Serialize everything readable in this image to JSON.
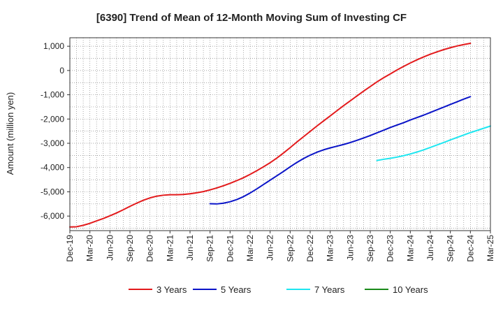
{
  "chart_data": {
    "type": "line",
    "title": "[6390]  Trend of Mean of 12-Month Moving Sum of Investing CF",
    "xlabel": "",
    "ylabel": "Amount (million yen)",
    "ylim": [
      -6600,
      1350
    ],
    "y_ticks": [
      1000,
      0,
      -1000,
      -2000,
      -3000,
      -4000,
      -5000,
      -6000
    ],
    "y_tick_labels": [
      "1,000",
      "0",
      "-1,000",
      "-2,000",
      "-3,000",
      "-4,000",
      "-5,000",
      "-6,000"
    ],
    "x_range": [
      "Dec-19",
      "Mar-25"
    ],
    "x_tick_labels": [
      "Dec-19",
      "Mar-20",
      "Jun-20",
      "Sep-20",
      "Dec-20",
      "Mar-21",
      "Jun-21",
      "Sep-21",
      "Dec-21",
      "Mar-22",
      "Jun-22",
      "Sep-22",
      "Dec-22",
      "Mar-23",
      "Jun-23",
      "Sep-23",
      "Dec-23",
      "Mar-24",
      "Jun-24",
      "Sep-24",
      "Dec-24",
      "Mar-25"
    ],
    "grid": true,
    "legend_position": "bottom",
    "series": [
      {
        "name": "3 Years",
        "color": "#e31a1c",
        "points": [
          [
            "Dec-19",
            -6450
          ],
          [
            "Jan-20",
            -6440
          ],
          [
            "Feb-20",
            -6380
          ],
          [
            "Mar-20",
            -6300
          ],
          [
            "Apr-20",
            -6200
          ],
          [
            "May-20",
            -6100
          ],
          [
            "Jun-20",
            -5990
          ],
          [
            "Jul-20",
            -5870
          ],
          [
            "Aug-20",
            -5740
          ],
          [
            "Sep-20",
            -5600
          ],
          [
            "Oct-20",
            -5470
          ],
          [
            "Nov-20",
            -5350
          ],
          [
            "Dec-20",
            -5250
          ],
          [
            "Jan-21",
            -5180
          ],
          [
            "Feb-21",
            -5140
          ],
          [
            "Mar-21",
            -5120
          ],
          [
            "Apr-21",
            -5120
          ],
          [
            "May-21",
            -5110
          ],
          [
            "Jun-21",
            -5080
          ],
          [
            "Jul-21",
            -5040
          ],
          [
            "Aug-21",
            -4990
          ],
          [
            "Sep-21",
            -4920
          ],
          [
            "Oct-21",
            -4840
          ],
          [
            "Nov-21",
            -4750
          ],
          [
            "Dec-21",
            -4650
          ],
          [
            "Jan-22",
            -4540
          ],
          [
            "Feb-22",
            -4420
          ],
          [
            "Mar-22",
            -4280
          ],
          [
            "Apr-22",
            -4130
          ],
          [
            "May-22",
            -3970
          ],
          [
            "Jun-22",
            -3800
          ],
          [
            "Jul-22",
            -3610
          ],
          [
            "Aug-22",
            -3400
          ],
          [
            "Sep-22",
            -3180
          ],
          [
            "Oct-22",
            -2950
          ],
          [
            "Nov-22",
            -2730
          ],
          [
            "Dec-22",
            -2510
          ],
          [
            "Jan-23",
            -2290
          ],
          [
            "Feb-23",
            -2080
          ],
          [
            "Mar-23",
            -1870
          ],
          [
            "Apr-23",
            -1660
          ],
          [
            "May-23",
            -1450
          ],
          [
            "Jun-23",
            -1250
          ],
          [
            "Jul-23",
            -1050
          ],
          [
            "Aug-23",
            -850
          ],
          [
            "Sep-23",
            -660
          ],
          [
            "Oct-23",
            -470
          ],
          [
            "Nov-23",
            -300
          ],
          [
            "Dec-23",
            -140
          ],
          [
            "Jan-24",
            20
          ],
          [
            "Feb-24",
            170
          ],
          [
            "Mar-24",
            310
          ],
          [
            "Apr-24",
            440
          ],
          [
            "May-24",
            560
          ],
          [
            "Jun-24",
            670
          ],
          [
            "Jul-24",
            770
          ],
          [
            "Aug-24",
            860
          ],
          [
            "Sep-24",
            940
          ],
          [
            "Oct-24",
            1010
          ],
          [
            "Nov-24",
            1070
          ],
          [
            "Dec-24",
            1120
          ]
        ]
      },
      {
        "name": "5 Years",
        "color": "#0a14c8",
        "points": [
          [
            "Sep-21",
            -5490
          ],
          [
            "Oct-21",
            -5500
          ],
          [
            "Nov-21",
            -5470
          ],
          [
            "Dec-21",
            -5410
          ],
          [
            "Jan-22",
            -5320
          ],
          [
            "Feb-22",
            -5200
          ],
          [
            "Mar-22",
            -5050
          ],
          [
            "Apr-22",
            -4880
          ],
          [
            "May-22",
            -4700
          ],
          [
            "Jun-22",
            -4520
          ],
          [
            "Jul-22",
            -4340
          ],
          [
            "Aug-22",
            -4160
          ],
          [
            "Sep-22",
            -3970
          ],
          [
            "Oct-22",
            -3790
          ],
          [
            "Nov-22",
            -3630
          ],
          [
            "Dec-22",
            -3490
          ],
          [
            "Jan-23",
            -3370
          ],
          [
            "Feb-23",
            -3270
          ],
          [
            "Mar-23",
            -3190
          ],
          [
            "Apr-23",
            -3120
          ],
          [
            "May-23",
            -3050
          ],
          [
            "Jun-23",
            -2970
          ],
          [
            "Jul-23",
            -2880
          ],
          [
            "Aug-23",
            -2780
          ],
          [
            "Sep-23",
            -2680
          ],
          [
            "Oct-23",
            -2570
          ],
          [
            "Nov-23",
            -2460
          ],
          [
            "Dec-23",
            -2350
          ],
          [
            "Jan-24",
            -2250
          ],
          [
            "Feb-24",
            -2150
          ],
          [
            "Mar-24",
            -2040
          ],
          [
            "Apr-24",
            -1940
          ],
          [
            "May-24",
            -1840
          ],
          [
            "Jun-24",
            -1730
          ],
          [
            "Jul-24",
            -1620
          ],
          [
            "Aug-24",
            -1510
          ],
          [
            "Sep-24",
            -1400
          ],
          [
            "Oct-24",
            -1290
          ],
          [
            "Nov-24",
            -1180
          ],
          [
            "Dec-24",
            -1080
          ]
        ]
      },
      {
        "name": "7 Years",
        "color": "#1ee6f0",
        "points": [
          [
            "Oct-23",
            -3710
          ],
          [
            "Nov-23",
            -3660
          ],
          [
            "Dec-23",
            -3620
          ],
          [
            "Jan-24",
            -3570
          ],
          [
            "Feb-24",
            -3510
          ],
          [
            "Mar-24",
            -3440
          ],
          [
            "Apr-24",
            -3360
          ],
          [
            "May-24",
            -3270
          ],
          [
            "Jun-24",
            -3170
          ],
          [
            "Jul-24",
            -3070
          ],
          [
            "Aug-24",
            -2970
          ],
          [
            "Sep-24",
            -2860
          ],
          [
            "Oct-24",
            -2760
          ],
          [
            "Nov-24",
            -2660
          ],
          [
            "Dec-24",
            -2560
          ],
          [
            "Jan-25",
            -2470
          ],
          [
            "Feb-25",
            -2380
          ],
          [
            "Mar-25",
            -2290
          ]
        ]
      },
      {
        "name": "10 Years",
        "color": "#1a8a1a",
        "points": []
      }
    ]
  }
}
